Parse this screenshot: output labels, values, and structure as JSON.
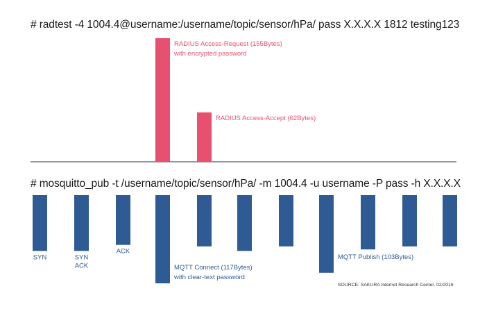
{
  "commands": {
    "top": "# radtest -4 1004.4@username:/username/topic/sensor/hPa/ pass X.X.X.X 1812 testing123",
    "bottom": "# mosquitto_pub -t /username/topic/sensor/hPa/ -m 1004.4 -u username -P pass -h X.X.X.X"
  },
  "source": "SOURCE: SAKURA Internet Research Center. 02/2016",
  "colors": {
    "radius": "#e8506f",
    "mqtt": "#2e5b94",
    "axis": "#333333"
  },
  "chart_data": [
    {
      "type": "bar",
      "protocol": "RADIUS",
      "direction": "up",
      "unit": "Bytes",
      "ylim": [
        0,
        155
      ],
      "bars": [
        {
          "value": 155,
          "label": [
            "RADIUS Access-Request (155Bytes)",
            "with encrypted password"
          ]
        },
        {
          "value": 62,
          "label": [
            "RADIUS Access-Accept (62Bytes)"
          ]
        }
      ]
    },
    {
      "type": "bar",
      "protocol": "MQTT",
      "direction": "down",
      "unit": "Bytes",
      "ylim": [
        0,
        117
      ],
      "bars": [
        {
          "value": 74,
          "label": [
            "SYN"
          ]
        },
        {
          "value": 74,
          "label": [
            "SYN",
            "ACK"
          ]
        },
        {
          "value": 66,
          "label": [
            "ACK"
          ]
        },
        {
          "value": 117,
          "label": [
            "MQTT Connect (117Bytes)",
            "with clear-text password"
          ]
        },
        {
          "value": 68,
          "label": []
        },
        {
          "value": 74,
          "label": []
        },
        {
          "value": 68,
          "label": []
        },
        {
          "value": 103,
          "label": [
            "MQTT Publish (103Bytes)"
          ]
        },
        {
          "value": 72,
          "label": []
        },
        {
          "value": 68,
          "label": []
        },
        {
          "value": 68,
          "label": []
        }
      ]
    }
  ]
}
